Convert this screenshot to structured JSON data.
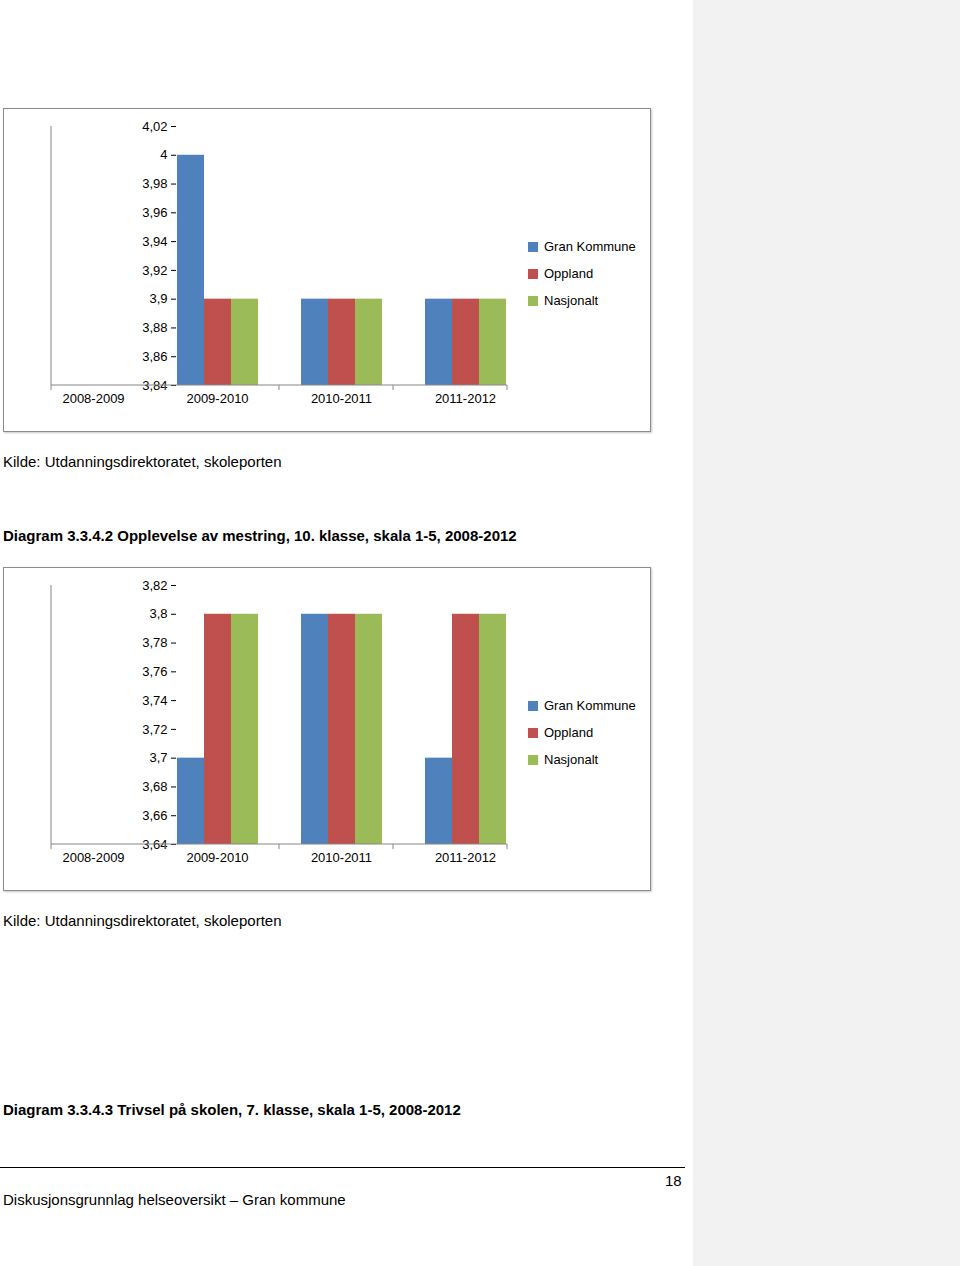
{
  "chart_data": [
    {
      "type": "bar",
      "categories": [
        "2008-2009",
        "2009-2010",
        "2010-2011",
        "2011-2012"
      ],
      "series": [
        {
          "name": "Gran Kommune",
          "color": "#4f81bd",
          "values": [
            null,
            4,
            3.9,
            3.9
          ]
        },
        {
          "name": "Oppland",
          "color": "#c0504d",
          "values": [
            null,
            3.9,
            3.9,
            3.9
          ]
        },
        {
          "name": "Nasjonalt",
          "color": "#9bbb59",
          "values": [
            null,
            3.9,
            3.9,
            3.9
          ]
        }
      ],
      "ylim": [
        3.84,
        4.02
      ],
      "yticks": [
        {
          "value": 3.84,
          "label": "3,84"
        },
        {
          "value": 3.86,
          "label": "3,86"
        },
        {
          "value": 3.88,
          "label": "3,88"
        },
        {
          "value": 3.9,
          "label": "3,9"
        },
        {
          "value": 3.92,
          "label": "3,92"
        },
        {
          "value": 3.94,
          "label": "3,94"
        },
        {
          "value": 3.96,
          "label": "3,96"
        },
        {
          "value": 3.98,
          "label": "3,98"
        },
        4,
        {
          "value": 4.02,
          "label": "4,02"
        }
      ],
      "grid": false,
      "legend": "right",
      "source": "Kilde: Utdanningsdirektoratet, skoleporten"
    },
    {
      "type": "bar",
      "title": "Diagram 3.3.4.2 Opplevelse av mestring, 10. klasse, skala 1-5, 2008-2012",
      "categories": [
        "2008-2009",
        "2009-2010",
        "2010-2011",
        "2011-2012"
      ],
      "series": [
        {
          "name": "Gran Kommune",
          "color": "#4f81bd",
          "values": [
            null,
            3.7,
            3.8,
            3.7
          ]
        },
        {
          "name": "Oppland",
          "color": "#c0504d",
          "values": [
            null,
            3.8,
            3.8,
            3.8
          ]
        },
        {
          "name": "Nasjonalt",
          "color": "#9bbb59",
          "values": [
            null,
            3.8,
            3.8,
            3.8
          ]
        }
      ],
      "ylim": [
        3.64,
        3.82
      ],
      "yticks": [
        {
          "value": 3.64,
          "label": "3,64"
        },
        {
          "value": 3.66,
          "label": "3,66"
        },
        {
          "value": 3.68,
          "label": "3,68"
        },
        {
          "value": 3.7,
          "label": "3,7"
        },
        {
          "value": 3.72,
          "label": "3,72"
        },
        {
          "value": 3.74,
          "label": "3,74"
        },
        {
          "value": 3.76,
          "label": "3,76"
        },
        {
          "value": 3.78,
          "label": "3,78"
        },
        {
          "value": 3.8,
          "label": "3,8"
        },
        {
          "value": 3.82,
          "label": "3,82"
        }
      ],
      "grid": false,
      "legend": "right",
      "source": "Kilde: Utdanningsdirektoratet, skoleporten"
    }
  ],
  "document": {
    "next_caption": "Diagram 3.3.4.3 Trivsel på skolen, 7. klasse, skala 1-5, 2008-2012",
    "footer": "Diskusjonsgrunnlag helseoversikt – Gran kommune",
    "page_number": 18
  }
}
